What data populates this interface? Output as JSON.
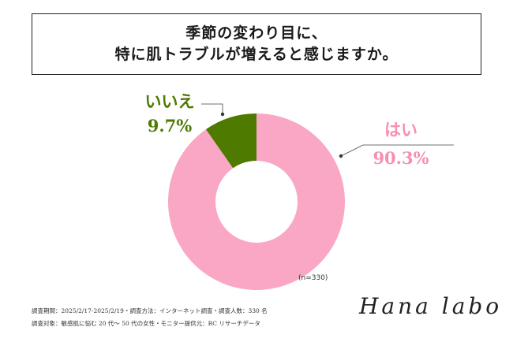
{
  "title": {
    "line1": "季節の変わり目に、",
    "line2": "特に肌トラブルが増えると感じますか。"
  },
  "chart_data": {
    "type": "pie",
    "donut": true,
    "slices": [
      {
        "label": "はい",
        "value": 90.3,
        "display": "90.3%",
        "color": "#f9a7c4",
        "label_color": "#f58fb5"
      },
      {
        "label": "いいえ",
        "value": 9.7,
        "display": "9.7%",
        "color": "#4f7a00",
        "label_color": "#4f7a00"
      }
    ],
    "sample": "(n=330)"
  },
  "footnotes": {
    "line1": "調査期間：2025/2/17-2025/2/19・調査方法：インターネット調査・調査人数：330 名",
    "line2": "調査対象：敏感肌に悩む 20 代〜 50 代の女性・モニター提供元：RC リサーチデータ"
  },
  "logo": "Hana labo"
}
